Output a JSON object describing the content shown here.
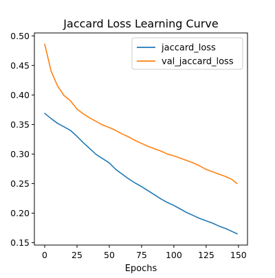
{
  "chart_data": {
    "type": "line",
    "title": "Jaccard Loss Learning Curve",
    "xlabel": "Epochs",
    "ylabel": "",
    "xlim": [
      -8,
      157
    ],
    "ylim": [
      0.146,
      0.505
    ],
    "xticks": [
      0,
      25,
      50,
      75,
      100,
      125,
      150
    ],
    "yticks": [
      0.15,
      0.2,
      0.25,
      0.3,
      0.35,
      0.4,
      0.45,
      0.5
    ],
    "xtick_labels": [
      "0",
      "25",
      "50",
      "75",
      "100",
      "125",
      "150"
    ],
    "ytick_labels": [
      "0.15",
      "0.20",
      "0.25",
      "0.30",
      "0.35",
      "0.40",
      "0.45",
      "0.50"
    ],
    "grid": false,
    "legend": {
      "position": "upper-right",
      "entries": [
        {
          "name": "jaccard_loss",
          "color": "#1f77b4"
        },
        {
          "name": "val_jaccard_loss",
          "color": "#ff7f0e"
        }
      ]
    },
    "x": [
      0,
      5,
      10,
      15,
      20,
      25,
      30,
      35,
      40,
      45,
      50,
      55,
      60,
      65,
      70,
      75,
      80,
      85,
      90,
      95,
      100,
      105,
      110,
      115,
      120,
      125,
      130,
      135,
      140,
      145,
      149
    ],
    "series": [
      {
        "name": "jaccard_loss",
        "color": "#1f77b4",
        "values": [
          0.369,
          0.36,
          0.352,
          0.346,
          0.34,
          0.33,
          0.319,
          0.309,
          0.299,
          0.292,
          0.285,
          0.274,
          0.266,
          0.258,
          0.251,
          0.245,
          0.238,
          0.231,
          0.224,
          0.218,
          0.213,
          0.207,
          0.201,
          0.196,
          0.191,
          0.187,
          0.183,
          0.178,
          0.174,
          0.169,
          0.165
        ]
      },
      {
        "name": "val_jaccard_loss",
        "color": "#ff7f0e",
        "values": [
          0.486,
          0.44,
          0.415,
          0.399,
          0.39,
          0.376,
          0.368,
          0.361,
          0.355,
          0.349,
          0.345,
          0.34,
          0.334,
          0.329,
          0.323,
          0.318,
          0.313,
          0.309,
          0.305,
          0.3,
          0.297,
          0.293,
          0.289,
          0.285,
          0.28,
          0.274,
          0.27,
          0.266,
          0.262,
          0.257,
          0.25
        ]
      }
    ]
  }
}
